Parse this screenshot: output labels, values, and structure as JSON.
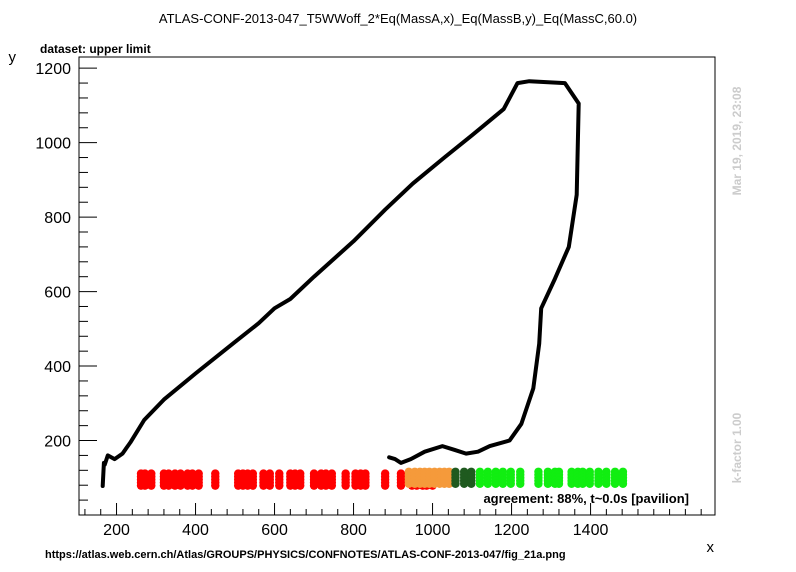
{
  "chart_data": {
    "type": "scatter",
    "title": "ATLAS-CONF-2013-047_T5WWoff_2*Eq(MassA,x)_Eq(MassB,y)_Eq(MassC,60.0)",
    "subtitle": "dataset: upper limit",
    "xlabel": "x",
    "ylabel": "y",
    "xlim": [
      105,
      1715
    ],
    "ylim": [
      0,
      1230
    ],
    "x_ticks": [
      200,
      400,
      600,
      800,
      1000,
      1200,
      1400
    ],
    "y_ticks": [
      200,
      400,
      600,
      800,
      1000,
      1200
    ],
    "grid": false,
    "colors": {
      "line": "#000000",
      "red": "#ff0000",
      "orange": "#f59a3b",
      "darkgreen": "#1f5a1f",
      "green": "#11ee11"
    },
    "series": [
      {
        "style": "line",
        "color": "#000000",
        "points": [
          [
            165,
            78
          ],
          [
            168,
            140
          ],
          [
            170,
            135
          ],
          [
            178,
            160
          ],
          [
            195,
            150
          ],
          [
            215,
            165
          ],
          [
            225,
            180
          ],
          [
            235,
            195
          ],
          [
            270,
            255
          ],
          [
            320,
            310
          ],
          [
            400,
            380
          ],
          [
            500,
            465
          ],
          [
            560,
            515
          ],
          [
            600,
            555
          ],
          [
            640,
            580
          ],
          [
            700,
            640
          ],
          [
            800,
            735
          ],
          [
            880,
            820
          ],
          [
            950,
            890
          ],
          [
            1030,
            960
          ],
          [
            1100,
            1020
          ],
          [
            1180,
            1090
          ],
          [
            1215,
            1160
          ],
          [
            1245,
            1165
          ],
          [
            1335,
            1160
          ],
          [
            1370,
            1105
          ],
          [
            1365,
            860
          ],
          [
            1345,
            720
          ],
          [
            1310,
            635
          ],
          [
            1275,
            555
          ],
          [
            1270,
            460
          ],
          [
            1255,
            340
          ],
          [
            1225,
            245
          ],
          [
            1195,
            200
          ],
          [
            1145,
            185
          ],
          [
            1115,
            170
          ],
          [
            1085,
            165
          ],
          [
            1055,
            175
          ],
          [
            1025,
            185
          ],
          [
            980,
            170
          ],
          [
            945,
            150
          ],
          [
            920,
            140
          ],
          [
            905,
            150
          ],
          [
            890,
            155
          ]
        ]
      }
    ],
    "scatter": [
      {
        "name": "",
        "color": "#ff0000",
        "x": [
          262,
          272,
          288,
          320,
          332,
          348,
          362,
          380,
          392,
          408,
          450,
          508,
          520,
          532,
          545,
          572,
          588,
          612,
          640,
          652,
          665,
          700,
          718,
          730,
          745,
          780,
          805,
          818,
          830,
          880,
          920,
          948,
          960,
          975,
          985,
          1000
        ],
        "y": [
          95,
          95,
          95,
          95,
          95,
          95,
          95,
          95,
          95,
          95,
          95,
          95,
          95,
          95,
          95,
          95,
          95,
          95,
          95,
          95,
          95,
          95,
          95,
          95,
          95,
          95,
          95,
          95,
          95,
          95,
          95,
          95,
          95,
          95,
          95,
          95
        ]
      },
      {
        "name": "",
        "color": "#f59a3b",
        "x": [
          940,
          955,
          968,
          980,
          992,
          1005,
          1018,
          1030,
          1042
        ],
        "y": [
          100,
          100,
          100,
          100,
          100,
          100,
          100,
          100,
          100
        ]
      },
      {
        "name": "",
        "color": "#1f5a1f",
        "x": [
          1058,
          1080,
          1098
        ],
        "y": [
          100,
          100,
          100
        ]
      },
      {
        "name": "",
        "color": "#11ee11",
        "x": [
          1120,
          1140,
          1160,
          1178,
          1198,
          1222,
          1268,
          1292,
          1310,
          1320,
          1352,
          1368,
          1380,
          1398,
          1420,
          1440,
          1462,
          1482
        ],
        "y": [
          100,
          100,
          100,
          100,
          100,
          100,
          100,
          100,
          100,
          100,
          100,
          100,
          100,
          100,
          100,
          100,
          100,
          100
        ]
      }
    ],
    "status_text": "agreement: 88%, t~0.0s [pavilion]",
    "timestamp": "Mar 19, 2019, 23:08",
    "kfactor": "k-factor 1.00",
    "source_url": "https://atlas.web.cern.ch/Atlas/GROUPS/PHYSICS/CONFNOTES/ATLAS-CONF-2013-047/fig_21a.png"
  }
}
